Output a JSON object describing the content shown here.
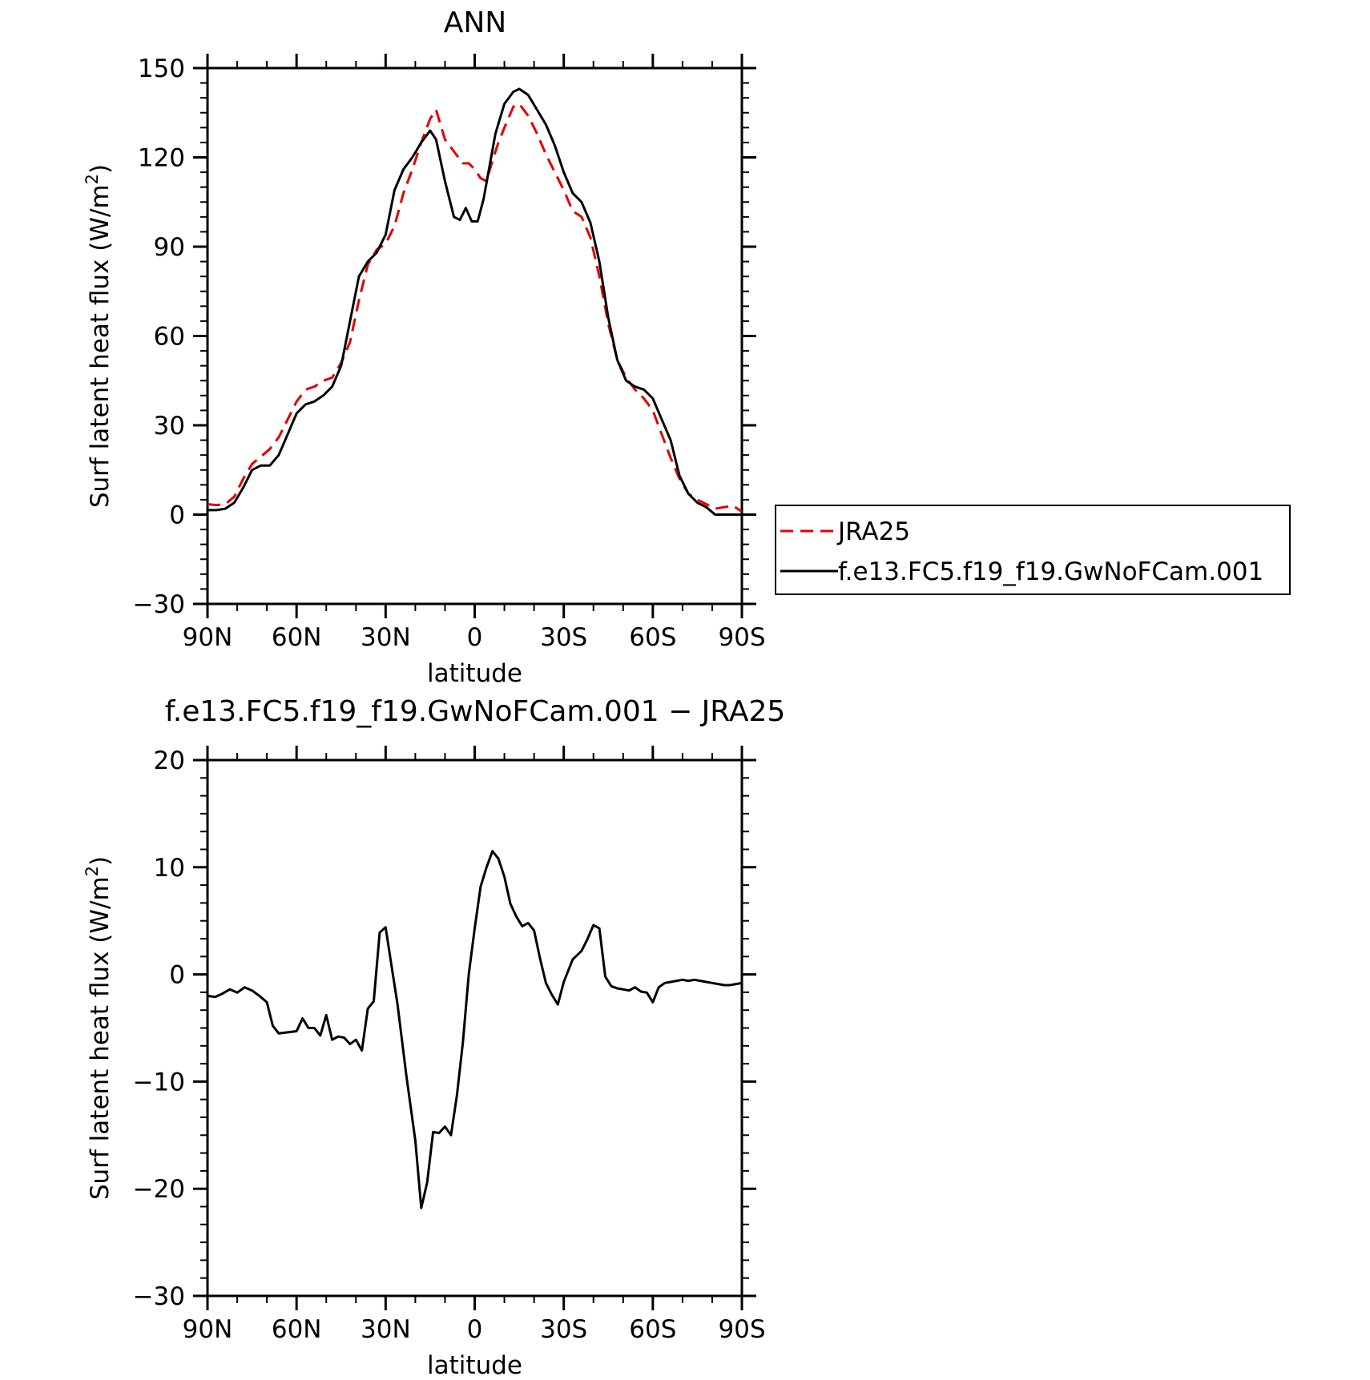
{
  "chart_data": [
    {
      "type": "line",
      "title": "ANN",
      "xlabel": "latitude",
      "ylabel": "Surf latent heat flux (W/m",
      "ylabel_sup": "2",
      "ylabel_end": ")",
      "xlim": [
        90,
        -90
      ],
      "ylim": [
        -30,
        150
      ],
      "xticks": [
        90,
        60,
        30,
        0,
        -30,
        -60,
        -90
      ],
      "xtick_labels": [
        "90N",
        "60N",
        "30N",
        "0",
        "30S",
        "60S",
        "90S"
      ],
      "yticks": [
        -30,
        0,
        30,
        60,
        90,
        120,
        150
      ],
      "ytick_labels": [
        "−30",
        "0",
        "30",
        "60",
        "90",
        "120",
        "150"
      ],
      "legend_position": "right",
      "series": [
        {
          "name": "JRA25",
          "color": "#e00000",
          "dash": "dashed",
          "x": [
            90,
            87,
            84,
            81,
            78,
            75,
            72,
            69,
            66,
            63,
            60,
            57,
            54,
            51,
            48,
            45,
            42,
            39,
            36,
            33,
            30,
            27,
            24,
            21,
            18,
            15,
            13,
            10,
            7,
            4,
            2,
            0,
            -2,
            -4,
            -6,
            -8,
            -10,
            -13,
            -15,
            -18,
            -21,
            -24,
            -27,
            -30,
            -33,
            -36,
            -39,
            -42,
            -45,
            -48,
            -51,
            -54,
            -57,
            -60,
            -63,
            -66,
            -69,
            -72,
            -75,
            -78,
            -81,
            -84,
            -87,
            -90
          ],
          "values": [
            3.5,
            3.2,
            3.5,
            6,
            12,
            17,
            19.5,
            22,
            26,
            32,
            38,
            42,
            43,
            45,
            46,
            51,
            58,
            72,
            84,
            89,
            91,
            97,
            108,
            116,
            125,
            133,
            136,
            126,
            122,
            118,
            118,
            116,
            113,
            112,
            119,
            125,
            130,
            137,
            138,
            134,
            128,
            121,
            115,
            109,
            102,
            100,
            93,
            80,
            64,
            52,
            46,
            42,
            39,
            35,
            27,
            19,
            12,
            7,
            5,
            3.5,
            2,
            2.5,
            3,
            1
          ]
        },
        {
          "name": "f.e13.FC5.f19_f19.GwNoFCam.001",
          "color": "#000000",
          "dash": "solid",
          "x": [
            90,
            87,
            84,
            81,
            78,
            75,
            72,
            69,
            66,
            63,
            60,
            57,
            54,
            51,
            48,
            45,
            42,
            39,
            36,
            33,
            30,
            27,
            24,
            21,
            18,
            15,
            13,
            10,
            7,
            5,
            3,
            1,
            -1,
            -3,
            -5,
            -7,
            -10,
            -13,
            -15,
            -18,
            -21,
            -24,
            -27,
            -30,
            -33,
            -36,
            -39,
            -42,
            -45,
            -48,
            -51,
            -54,
            -57,
            -60,
            -63,
            -66,
            -69,
            -72,
            -75,
            -78,
            -81,
            -84,
            -87,
            -90
          ],
          "values": [
            1.5,
            1.5,
            2,
            4,
            9,
            15,
            16.5,
            16.5,
            20,
            27,
            34,
            37,
            38,
            40,
            43,
            50,
            65,
            80,
            85,
            88,
            94,
            109,
            116,
            120,
            125,
            129,
            126,
            112,
            100,
            99,
            103,
            98.5,
            98.5,
            106,
            117,
            128,
            138,
            142,
            143,
            141,
            136,
            131,
            124,
            115,
            108,
            105,
            98,
            85,
            66,
            52,
            45,
            43,
            42,
            39,
            32,
            25,
            13,
            7,
            4,
            2.5,
            0,
            0,
            0,
            0
          ]
        }
      ]
    },
    {
      "type": "line",
      "title": "f.e13.FC5.f19_f19.GwNoFCam.001 − JRA25",
      "xlabel": "latitude",
      "ylabel": "Surf latent heat flux (W/m",
      "ylabel_sup": "2",
      "ylabel_end": ")",
      "xlim": [
        90,
        -90
      ],
      "ylim": [
        -30,
        20
      ],
      "xticks": [
        90,
        60,
        30,
        0,
        -30,
        -60,
        -90
      ],
      "xtick_labels": [
        "90N",
        "60N",
        "30N",
        "0",
        "30S",
        "60S",
        "90S"
      ],
      "yticks": [
        -30,
        -20,
        -10,
        0,
        10,
        20
      ],
      "ytick_labels": [
        "−30",
        "−20",
        "−10",
        "0",
        "10",
        "20"
      ],
      "series": [
        {
          "color": "#000000",
          "dash": "solid",
          "x": [
            90,
            87.5,
            85,
            82.5,
            80,
            77.5,
            75,
            72.5,
            70,
            68,
            66,
            63,
            60,
            58,
            56,
            54,
            52,
            50,
            48,
            46,
            44,
            42,
            40,
            38,
            36,
            34,
            32,
            30,
            28,
            26,
            23,
            20,
            18,
            16,
            14,
            12,
            10,
            8,
            6,
            4,
            2,
            0,
            -2,
            -4,
            -6,
            -8,
            -10,
            -12,
            -14,
            -16,
            -18,
            -20,
            -22,
            -24,
            -26,
            -28,
            -30,
            -33,
            -36,
            -38,
            -40,
            -42,
            -44,
            -46,
            -48,
            -50,
            -52,
            -54,
            -56,
            -58,
            -60,
            -62,
            -64,
            -66,
            -68,
            -70,
            -72,
            -74,
            -76,
            -78,
            -80,
            -82,
            -84,
            -86,
            -88,
            -90
          ],
          "values": [
            -2,
            -2.1,
            -1.8,
            -1.4,
            -1.7,
            -1.2,
            -1.5,
            -2,
            -2.6,
            -4.8,
            -5.5,
            -5.4,
            -5.3,
            -4.1,
            -5,
            -5,
            -5.7,
            -3.8,
            -6.1,
            -5.8,
            -5.9,
            -6.5,
            -6.1,
            -7.1,
            -3.2,
            -2.5,
            3.9,
            4.4,
            0.8,
            -2.8,
            -9.5,
            -15.5,
            -21.8,
            -19.4,
            -14.7,
            -14.8,
            -14.2,
            -15,
            -11.3,
            -6.4,
            0,
            4.3,
            8.2,
            10,
            11.5,
            10.8,
            9.1,
            6.6,
            5.4,
            4.5,
            4.8,
            4.1,
            1.5,
            -0.8,
            -1.9,
            -2.8,
            -0.7,
            1.4,
            2.2,
            3.3,
            4.6,
            4.3,
            -0.2,
            -1.1,
            -1.3,
            -1.4,
            -1.5,
            -1.2,
            -1.6,
            -1.7,
            -2.6,
            -1.2,
            -0.8,
            -0.7,
            -0.6,
            -0.5,
            -0.6,
            -0.5,
            -0.6,
            -0.7,
            -0.8,
            -0.9,
            -1,
            -1,
            -0.9,
            -0.8
          ]
        }
      ]
    }
  ]
}
